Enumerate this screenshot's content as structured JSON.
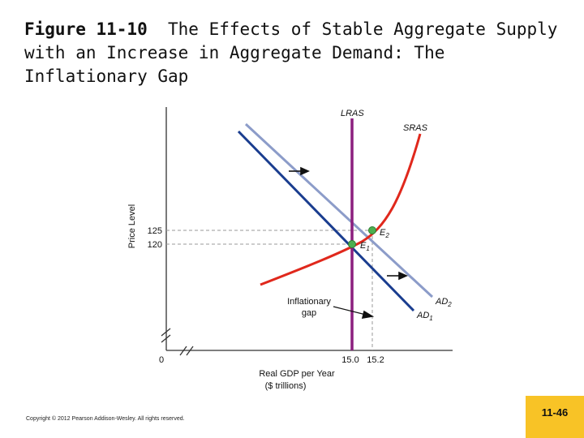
{
  "title": {
    "figure": "Figure 11-10",
    "text": "The Effects of Stable Aggregate Supply with an Increase in Aggregate Demand: The Inflationary Gap"
  },
  "chart_data": {
    "type": "line",
    "xlabel_line1": "Real GDP per Year",
    "xlabel_line2": "($ trillions)",
    "ylabel": "Price Level",
    "origin_label": "0",
    "x_ticks": [
      "15.0",
      "15.2"
    ],
    "y_ticks": [
      "125",
      "120"
    ],
    "curves": {
      "lras": {
        "label": "LRAS",
        "x": 15.0,
        "color": "#8b1f7e"
      },
      "sras": {
        "label": "SRAS",
        "color": "#e0281c"
      },
      "ad1": {
        "label": "AD",
        "sub": "1",
        "color": "#1a3d8f"
      },
      "ad2": {
        "label": "AD",
        "sub": "2",
        "color": "#8c9cc9"
      }
    },
    "points": [
      {
        "label": "E",
        "sub": "1",
        "x": 15.0,
        "y": 120
      },
      {
        "label": "E",
        "sub": "2",
        "x": 15.2,
        "y": 125
      }
    ],
    "annotation_line1": "Inflationary",
    "annotation_line2": "gap",
    "colors": {
      "axis": "#333333",
      "guide": "#999999",
      "point": "#4caf50"
    }
  },
  "footer": {
    "copyright": "Copyright © 2012 Pearson Addison-Wesley. All rights reserved.",
    "slide_number": "11-46"
  }
}
